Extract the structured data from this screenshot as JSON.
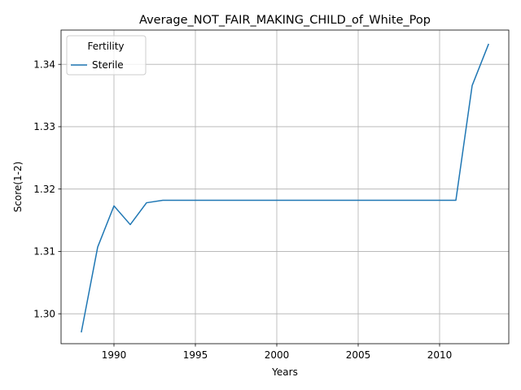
{
  "chart_data": {
    "type": "line",
    "title": "Average_NOT_FAIR_MAKING_CHILD_of_White_Pop",
    "xlabel": "Years",
    "ylabel": "Score(1-2)",
    "xlim": [
      1986.75,
      2014.25
    ],
    "ylim": [
      1.2952,
      1.3455
    ],
    "xticks": [
      1990,
      1995,
      2000,
      2005,
      2010
    ],
    "yticks": [
      1.3,
      1.31,
      1.32,
      1.33,
      1.34
    ],
    "ytick_labels": [
      "1.30",
      "1.31",
      "1.32",
      "1.33",
      "1.34"
    ],
    "grid": true,
    "legend": {
      "title": "Fertility",
      "placement": "top-left"
    },
    "series": [
      {
        "name": "Sterile",
        "color": "#1f77b4",
        "x": [
          1988,
          1989,
          1990,
          1991,
          1992,
          1993,
          1994,
          1995,
          1996,
          1997,
          1998,
          1999,
          2000,
          2001,
          2002,
          2003,
          2004,
          2005,
          2006,
          2007,
          2008,
          2009,
          2010,
          2011,
          2012,
          2013
        ],
        "y": [
          1.2971,
          1.3107,
          1.3173,
          1.3143,
          1.3178,
          1.3182,
          1.3182,
          1.3182,
          1.3182,
          1.3182,
          1.3182,
          1.3182,
          1.3182,
          1.3182,
          1.3182,
          1.3182,
          1.3182,
          1.3182,
          1.3182,
          1.3182,
          1.3182,
          1.3182,
          1.3182,
          1.3182,
          1.3366,
          1.3432
        ]
      }
    ]
  }
}
